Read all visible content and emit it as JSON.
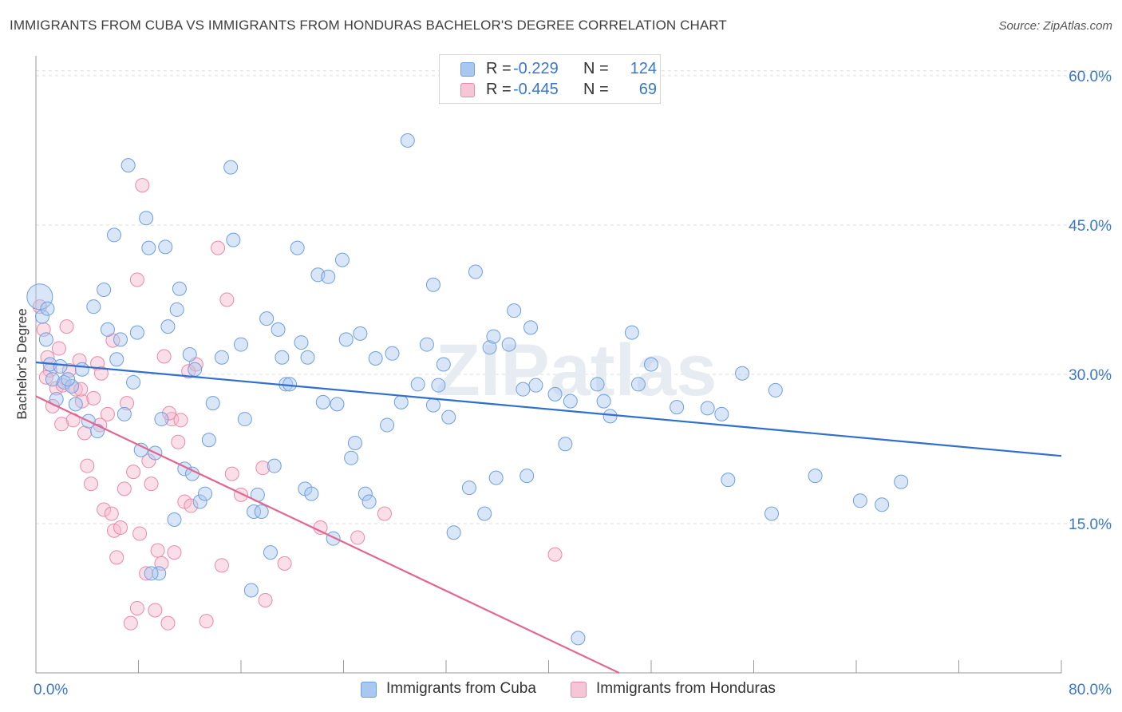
{
  "title": "IMMIGRANTS FROM CUBA VS IMMIGRANTS FROM HONDURAS BACHELOR'S DEGREE CORRELATION CHART",
  "source": "Source: ZipAtlas.com",
  "watermark": "ZIPatlas",
  "legend": {
    "rows": [
      {
        "r_label": "R =",
        "r_value": "-0.229",
        "n_label": "N =",
        "n_value": "124"
      },
      {
        "r_label": "R =",
        "r_value": "-0.445",
        "n_label": "N =",
        "n_value": "69"
      }
    ]
  },
  "bottom_legend": {
    "cuba": "Immigrants from Cuba",
    "honduras": "Immigrants from Honduras"
  },
  "colors": {
    "cuba_fill": "#a9c8f0",
    "cuba_stroke": "#6f9fdc",
    "cuba_line": "#2f6fcf",
    "honduras_fill": "#f7b8cc",
    "honduras_stroke": "#e88aa8",
    "honduras_line": "#e4668f",
    "tick_label": "#3b77c8",
    "grid": "#dcdcdc"
  },
  "chart_data": {
    "type": "scatter",
    "title": "IMMIGRANTS FROM CUBA VS IMMIGRANTS FROM HONDURAS BACHELOR'S DEGREE CORRELATION CHART",
    "xlabel": "",
    "ylabel": "Bachelor's Degree",
    "xlim": [
      0,
      80
    ],
    "ylim": [
      0,
      62
    ],
    "x_tick_labels": [
      "0.0%",
      "80.0%"
    ],
    "y_ticks": [
      15,
      30,
      45,
      60
    ],
    "y_tick_labels": [
      "15.0%",
      "30.0%",
      "45.0%",
      "60.0%"
    ],
    "grid": true,
    "legend_position": "top-center",
    "series": [
      {
        "name": "Immigrants from Cuba",
        "R": -0.229,
        "N": 124,
        "trend": {
          "x": [
            0,
            80
          ],
          "y": [
            31.2,
            21.8
          ]
        },
        "points": [
          [
            0.3,
            37.8
          ],
          [
            0.5,
            35.8
          ],
          [
            0.8,
            33.5
          ],
          [
            1.1,
            31.0
          ],
          [
            1.3,
            29.5
          ],
          [
            1.6,
            27.5
          ],
          [
            1.9,
            30.8
          ],
          [
            2.2,
            29.2
          ],
          [
            2.8,
            28.8
          ],
          [
            3.1,
            27.0
          ],
          [
            3.6,
            30.5
          ],
          [
            4.1,
            25.3
          ],
          [
            4.5,
            36.8
          ],
          [
            4.8,
            24.3
          ],
          [
            5.3,
            38.5
          ],
          [
            5.6,
            34.5
          ],
          [
            6.1,
            44.0
          ],
          [
            6.3,
            31.5
          ],
          [
            6.6,
            33.5
          ],
          [
            6.9,
            26.0
          ],
          [
            7.2,
            51.0
          ],
          [
            7.6,
            29.2
          ],
          [
            7.9,
            34.2
          ],
          [
            8.2,
            22.4
          ],
          [
            8.6,
            45.7
          ],
          [
            8.8,
            42.7
          ],
          [
            9.3,
            22.1
          ],
          [
            9.6,
            10.0
          ],
          [
            9.8,
            25.5
          ],
          [
            10.1,
            42.8
          ],
          [
            10.3,
            34.8
          ],
          [
            10.8,
            15.4
          ],
          [
            11.0,
            36.5
          ],
          [
            11.2,
            38.6
          ],
          [
            11.6,
            20.5
          ],
          [
            12.0,
            32.0
          ],
          [
            12.2,
            20.0
          ],
          [
            12.4,
            30.5
          ],
          [
            12.8,
            17.2
          ],
          [
            13.2,
            18.0
          ],
          [
            13.5,
            23.4
          ],
          [
            13.8,
            27.1
          ],
          [
            14.5,
            31.7
          ],
          [
            15.2,
            50.8
          ],
          [
            15.4,
            43.5
          ],
          [
            16.0,
            33.0
          ],
          [
            16.3,
            25.5
          ],
          [
            16.8,
            8.3
          ],
          [
            17.0,
            16.2
          ],
          [
            17.3,
            17.9
          ],
          [
            17.6,
            16.2
          ],
          [
            18.0,
            35.6
          ],
          [
            18.3,
            12.1
          ],
          [
            18.6,
            20.8
          ],
          [
            18.9,
            34.5
          ],
          [
            19.2,
            31.7
          ],
          [
            19.5,
            29.0
          ],
          [
            19.8,
            29.0
          ],
          [
            20.4,
            42.7
          ],
          [
            20.7,
            33.2
          ],
          [
            21.0,
            18.5
          ],
          [
            21.2,
            31.7
          ],
          [
            21.5,
            18.0
          ],
          [
            22.0,
            40.0
          ],
          [
            22.4,
            27.2
          ],
          [
            22.8,
            39.8
          ],
          [
            23.2,
            13.5
          ],
          [
            23.5,
            27.0
          ],
          [
            23.9,
            41.5
          ],
          [
            24.2,
            33.5
          ],
          [
            24.6,
            21.6
          ],
          [
            24.9,
            23.1
          ],
          [
            25.3,
            34.1
          ],
          [
            25.7,
            18.0
          ],
          [
            26.5,
            31.6
          ],
          [
            27.4,
            24.9
          ],
          [
            27.8,
            32.1
          ],
          [
            28.5,
            27.2
          ],
          [
            29.0,
            53.5
          ],
          [
            29.8,
            29.0
          ],
          [
            30.5,
            33.0
          ],
          [
            31.0,
            39.0
          ],
          [
            31.4,
            28.9
          ],
          [
            31.8,
            31.0
          ],
          [
            32.2,
            25.7
          ],
          [
            32.6,
            14.1
          ],
          [
            33.8,
            18.6
          ],
          [
            34.3,
            40.3
          ],
          [
            35.0,
            16.0
          ],
          [
            35.4,
            32.7
          ],
          [
            35.7,
            33.8
          ],
          [
            35.9,
            19.6
          ],
          [
            36.9,
            33.0
          ],
          [
            37.3,
            36.4
          ],
          [
            38.0,
            28.5
          ],
          [
            38.3,
            19.8
          ],
          [
            38.6,
            34.7
          ],
          [
            39.0,
            28.9
          ],
          [
            40.5,
            28.0
          ],
          [
            41.3,
            23.0
          ],
          [
            41.7,
            27.3
          ],
          [
            42.3,
            3.5
          ],
          [
            43.8,
            29.0
          ],
          [
            44.3,
            27.3
          ],
          [
            44.8,
            25.8
          ],
          [
            46.5,
            34.2
          ],
          [
            47.0,
            29.0
          ],
          [
            48.0,
            31.0
          ],
          [
            50.0,
            26.7
          ],
          [
            52.4,
            26.6
          ],
          [
            53.5,
            26.0
          ],
          [
            54.0,
            19.4
          ],
          [
            55.1,
            30.1
          ],
          [
            57.4,
            16.0
          ],
          [
            57.7,
            28.4
          ],
          [
            60.8,
            19.8
          ],
          [
            64.3,
            17.3
          ],
          [
            66.0,
            16.9
          ],
          [
            67.5,
            19.2
          ],
          [
            0.9,
            36.6
          ],
          [
            2.5,
            29.5
          ],
          [
            9.0,
            10.0
          ],
          [
            26.0,
            17.2
          ],
          [
            31.0,
            26.9
          ]
        ]
      },
      {
        "name": "Immigrants from Honduras",
        "R": -0.445,
        "N": 69,
        "trend": {
          "x": [
            0,
            45.5
          ],
          "y": [
            27.8,
            0
          ]
        },
        "points": [
          [
            0.3,
            36.8
          ],
          [
            0.6,
            34.5
          ],
          [
            0.9,
            31.7
          ],
          [
            1.1,
            30.4
          ],
          [
            1.3,
            26.8
          ],
          [
            1.6,
            28.6
          ],
          [
            1.8,
            32.6
          ],
          [
            2.1,
            28.9
          ],
          [
            2.4,
            34.8
          ],
          [
            2.6,
            30.4
          ],
          [
            2.9,
            25.4
          ],
          [
            3.1,
            28.5
          ],
          [
            3.4,
            31.4
          ],
          [
            3.6,
            27.3
          ],
          [
            3.8,
            24.1
          ],
          [
            4.0,
            20.8
          ],
          [
            4.3,
            19.0
          ],
          [
            4.5,
            27.6
          ],
          [
            4.8,
            31.1
          ],
          [
            5.1,
            30.1
          ],
          [
            5.3,
            16.4
          ],
          [
            5.6,
            26.0
          ],
          [
            5.9,
            16.0
          ],
          [
            6.1,
            14.3
          ],
          [
            6.3,
            11.6
          ],
          [
            6.6,
            14.6
          ],
          [
            6.9,
            18.5
          ],
          [
            7.1,
            27.1
          ],
          [
            7.4,
            5.0
          ],
          [
            7.6,
            20.2
          ],
          [
            7.9,
            6.5
          ],
          [
            8.1,
            14.0
          ],
          [
            8.3,
            49.0
          ],
          [
            8.6,
            10.0
          ],
          [
            8.8,
            21.3
          ],
          [
            9.0,
            19.0
          ],
          [
            9.3,
            6.3
          ],
          [
            9.5,
            12.3
          ],
          [
            9.8,
            11.0
          ],
          [
            10.0,
            31.8
          ],
          [
            10.3,
            5.0
          ],
          [
            10.6,
            25.5
          ],
          [
            10.8,
            12.1
          ],
          [
            11.1,
            23.2
          ],
          [
            11.3,
            25.4
          ],
          [
            11.6,
            17.2
          ],
          [
            11.9,
            30.3
          ],
          [
            12.1,
            16.8
          ],
          [
            13.3,
            5.2
          ],
          [
            14.2,
            42.7
          ],
          [
            14.5,
            10.8
          ],
          [
            14.9,
            37.5
          ],
          [
            15.3,
            20.0
          ],
          [
            16.0,
            17.9
          ],
          [
            17.7,
            20.6
          ],
          [
            17.9,
            7.3
          ],
          [
            19.4,
            11.0
          ],
          [
            22.2,
            14.6
          ],
          [
            25.1,
            13.6
          ],
          [
            27.2,
            16.0
          ],
          [
            40.5,
            11.9
          ],
          [
            7.9,
            39.5
          ],
          [
            5.0,
            24.9
          ],
          [
            3.5,
            28.5
          ],
          [
            6.0,
            33.4
          ],
          [
            0.8,
            29.7
          ],
          [
            2.0,
            25.0
          ],
          [
            12.5,
            31.0
          ],
          [
            10.4,
            26.1
          ]
        ]
      }
    ]
  }
}
